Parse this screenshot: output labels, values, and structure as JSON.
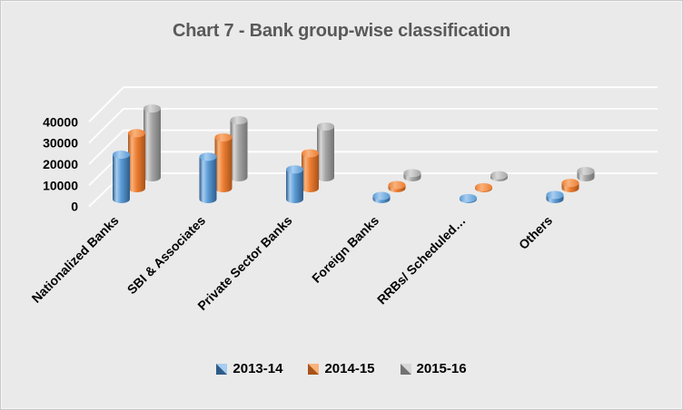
{
  "title": {
    "text": "Chart 7 - Bank group-wise classification"
  },
  "chart_data": {
    "type": "bar",
    "subtype": "3d-cylinder",
    "title": "Chart 7 - Bank group-wise classification",
    "categories": [
      "Nationalized Banks",
      "SBI & Associates",
      "Private Sector Banks",
      "Foreign Banks",
      "RRBs/ Scheduled…",
      "Others"
    ],
    "series": [
      {
        "name": "2013-14",
        "color": "#5b9bd5",
        "color_dark": "#2e5c8a",
        "color_light": "#a7cdf0",
        "values": [
          21000,
          20000,
          14000,
          1500,
          500,
          2000
        ]
      },
      {
        "name": "2014-15",
        "color": "#ed7d31",
        "color_dark": "#a8531a",
        "color_light": "#f8b27c",
        "values": [
          26000,
          24000,
          16500,
          1500,
          500,
          2500
        ]
      },
      {
        "name": "2015-16",
        "color": "#a5a5a5",
        "color_dark": "#737373",
        "color_light": "#d8d8d8",
        "values": [
          32500,
          27000,
          24000,
          2000,
          1000,
          3000
        ]
      }
    ],
    "yticks": [
      0,
      10000,
      20000,
      30000,
      40000
    ],
    "ylim": [
      0,
      40000
    ],
    "legend_position": "bottom",
    "gridlines": true
  },
  "colors": {
    "background": "#eaeaea",
    "gridline": "#ffffff",
    "title_text": "#595959",
    "axis_text": "#000000"
  }
}
